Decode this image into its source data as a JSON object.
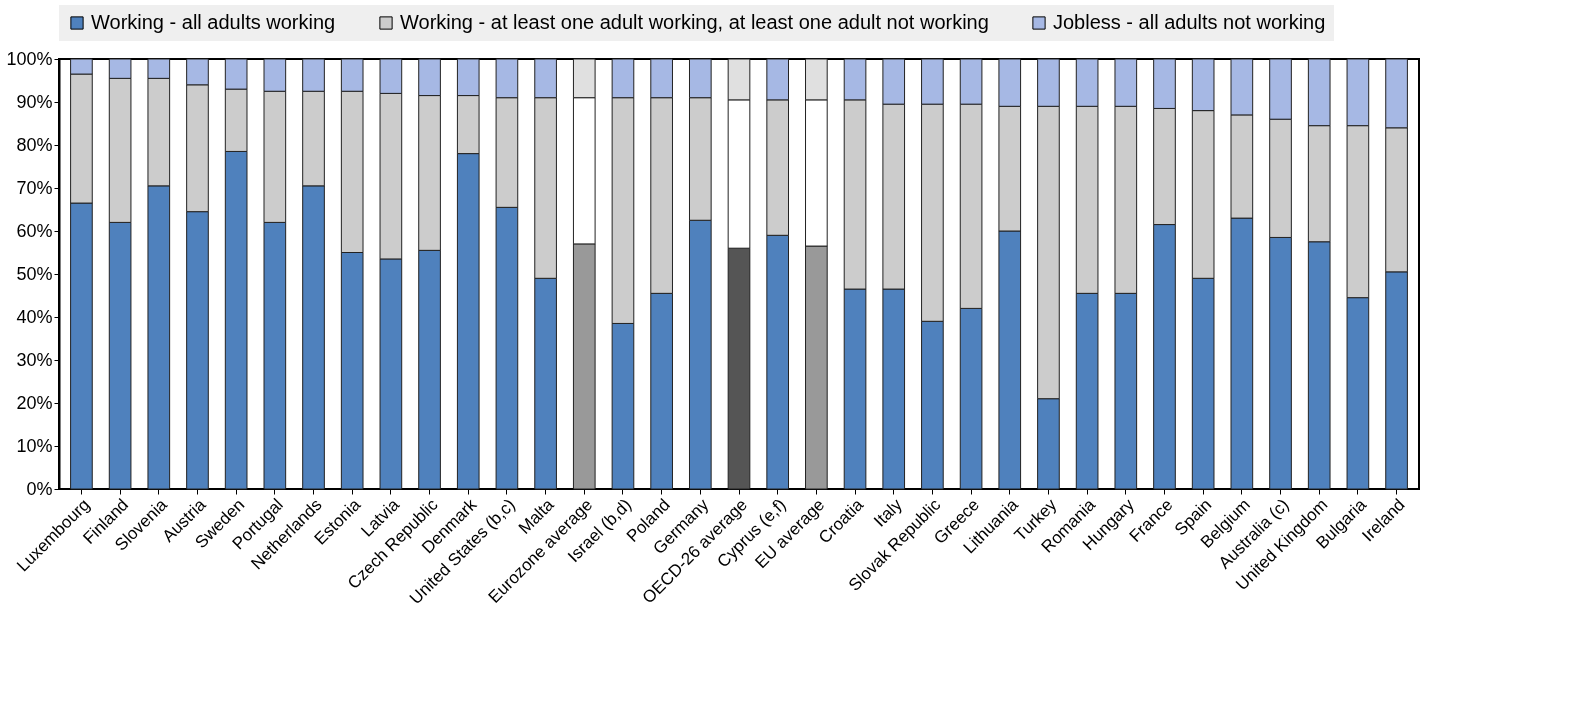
{
  "chart_data": {
    "type": "bar",
    "stacked": true,
    "legend": "top",
    "grid": false,
    "categories": [
      "Luxembourg",
      "Finland",
      "Slovenia",
      "Austria",
      "Sweden",
      "Portugal",
      "Netherlands",
      "Estonia",
      "Latvia",
      "Czech Republic",
      "Denmark",
      "United States (b,c)",
      "Malta",
      "Eurozone average",
      "Israel (b,d)",
      "Poland",
      "Germany",
      "OECD-26 average",
      "Cyprus (e,f)",
      "EU average",
      "Croatia",
      "Italy",
      "Slovak Republic",
      "Greece",
      "Lithuania",
      "Turkey",
      "Romania",
      "Hungary",
      "France",
      "Spain",
      "Belgium",
      "Australia (c)",
      "United Kingdom",
      "Bulgaria",
      "Ireland"
    ],
    "ylim": [
      0,
      100
    ],
    "yticks": [
      {
        "value": 0,
        "label": "0%"
      },
      {
        "value": 10,
        "label": "10%"
      },
      {
        "value": 20,
        "label": "20%"
      },
      {
        "value": 30,
        "label": "30%"
      },
      {
        "value": 40,
        "label": "40%"
      },
      {
        "value": 50,
        "label": "50%"
      },
      {
        "value": 60,
        "label": "60%"
      },
      {
        "value": 70,
        "label": "70%"
      },
      {
        "value": 80,
        "label": "80%"
      },
      {
        "value": 90,
        "label": "90%"
      },
      {
        "value": 100,
        "label": "100%"
      }
    ],
    "series": [
      {
        "name": "Working - all adults working",
        "color": "#4f81bd",
        "colors": [
          "#4f81bd",
          "#4f81bd",
          "#4f81bd",
          "#4f81bd",
          "#4f81bd",
          "#4f81bd",
          "#4f81bd",
          "#4f81bd",
          "#4f81bd",
          "#4f81bd",
          "#4f81bd",
          "#4f81bd",
          "#4f81bd",
          "#999999",
          "#4f81bd",
          "#4f81bd",
          "#4f81bd",
          "#555555",
          "#4f81bd",
          "#999999",
          "#4f81bd",
          "#4f81bd",
          "#4f81bd",
          "#4f81bd",
          "#4f81bd",
          "#4f81bd",
          "#4f81bd",
          "#4f81bd",
          "#4f81bd",
          "#4f81bd",
          "#4f81bd",
          "#4f81bd",
          "#4f81bd",
          "#4f81bd",
          "#4f81bd"
        ],
        "values": [
          66.5,
          62,
          70.5,
          64.5,
          78.5,
          62,
          70.5,
          55,
          53.5,
          55.5,
          78,
          65.5,
          49,
          57,
          38.5,
          45.5,
          62.5,
          56,
          59,
          56.5,
          46.5,
          46.5,
          39,
          42,
          60,
          21,
          45.5,
          45.5,
          61.5,
          49,
          63,
          58.5,
          57.5,
          44.5,
          50.5
        ]
      },
      {
        "name": "Working - at least one adult working, at least one adult not working",
        "color": "#cccccc",
        "colors": [
          "#cccccc",
          "#cccccc",
          "#cccccc",
          "#cccccc",
          "#cccccc",
          "#cccccc",
          "#cccccc",
          "#cccccc",
          "#cccccc",
          "#cccccc",
          "#cccccc",
          "#cccccc",
          "#cccccc",
          "#ffffff",
          "#cccccc",
          "#cccccc",
          "#cccccc",
          "#ffffff",
          "#cccccc",
          "#ffffff",
          "#cccccc",
          "#cccccc",
          "#cccccc",
          "#cccccc",
          "#cccccc",
          "#cccccc",
          "#cccccc",
          "#cccccc",
          "#cccccc",
          "#cccccc",
          "#cccccc",
          "#cccccc",
          "#cccccc",
          "#cccccc",
          "#cccccc"
        ],
        "values": [
          30,
          33.5,
          25,
          29.5,
          14.5,
          30.5,
          22,
          37.5,
          38.5,
          36,
          13.5,
          25.5,
          42,
          34,
          52.5,
          45.5,
          28.5,
          34.5,
          31.5,
          34,
          44,
          43,
          50.5,
          47.5,
          29,
          68,
          43.5,
          43.5,
          27,
          39,
          24,
          27.5,
          27,
          40,
          33.5
        ]
      },
      {
        "name": "Jobless - all adults not working",
        "color": "#a6b8e4",
        "colors": [
          "#a6b8e4",
          "#a6b8e4",
          "#a6b8e4",
          "#a6b8e4",
          "#a6b8e4",
          "#a6b8e4",
          "#a6b8e4",
          "#a6b8e4",
          "#a6b8e4",
          "#a6b8e4",
          "#a6b8e4",
          "#a6b8e4",
          "#a6b8e4",
          "#e0e0e0",
          "#a6b8e4",
          "#a6b8e4",
          "#a6b8e4",
          "#e0e0e0",
          "#a6b8e4",
          "#e0e0e0",
          "#a6b8e4",
          "#a6b8e4",
          "#a6b8e4",
          "#a6b8e4",
          "#a6b8e4",
          "#a6b8e4",
          "#a6b8e4",
          "#a6b8e4",
          "#a6b8e4",
          "#a6b8e4",
          "#a6b8e4",
          "#a6b8e4",
          "#a6b8e4",
          "#a6b8e4",
          "#a6b8e4"
        ],
        "values": [
          3.5,
          4.5,
          4.5,
          6,
          7,
          7.5,
          7.5,
          7.5,
          8,
          8.5,
          8.5,
          9,
          9,
          9,
          9,
          9,
          9,
          9.5,
          9.5,
          9.5,
          9.5,
          10.5,
          10.5,
          10.5,
          11,
          11,
          11,
          11,
          11.5,
          12,
          13,
          14,
          15.5,
          15.5,
          16
        ]
      }
    ]
  }
}
